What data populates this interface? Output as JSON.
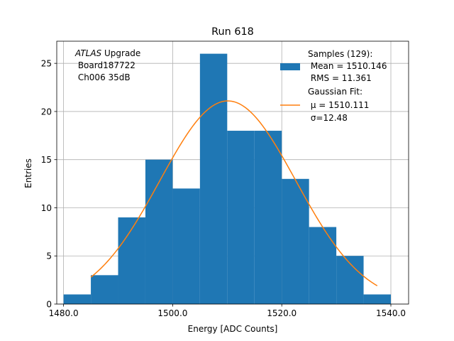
{
  "chart_data": {
    "type": "bar",
    "title": "Run 618",
    "xlabel": "Energy [ADC Counts]",
    "ylabel": "Entries",
    "xlim": [
      1478.75,
      1543.25
    ],
    "ylim": [
      0,
      27.3
    ],
    "grid": true,
    "x_ticks": [
      1480.0,
      1500.0,
      1520.0,
      1540.0
    ],
    "x_tick_labels": [
      "1480.0",
      "1500.0",
      "1520.0",
      "1540.0"
    ],
    "y_ticks": [
      0,
      5,
      10,
      15,
      20,
      25
    ],
    "y_tick_labels": [
      "0",
      "5",
      "10",
      "15",
      "20",
      "25"
    ],
    "bin_edges": [
      1480,
      1485,
      1490,
      1495,
      1500,
      1505,
      1510,
      1515,
      1520,
      1525,
      1530,
      1535,
      1540
    ],
    "values": [
      1,
      3,
      9,
      15,
      12,
      26,
      18,
      18,
      13,
      8,
      5,
      1
    ],
    "bar_color": "#1f77b4",
    "fit": {
      "type": "gaussian",
      "amplitude": 21.1,
      "mu": 1510.111,
      "sigma": 12.48,
      "x_range": [
        1485,
        1537.5
      ],
      "color": "#ff7f0e"
    },
    "annotation": {
      "italic": "ATLAS",
      "rest": " Upgrade",
      "line2": " Board187722",
      "line3": " Ch006 35dB"
    },
    "legend": {
      "placement": "top-right",
      "entries": [
        {
          "kind": "patch",
          "color": "#1f77b4",
          "lines": [
            "Samples (129):",
            " Mean = 1510.146",
            " RMS = 11.361"
          ]
        },
        {
          "kind": "line",
          "color": "#ff7f0e",
          "lines": [
            "Gaussian Fit:",
            " μ = 1510.111",
            " σ=12.48"
          ]
        }
      ]
    }
  }
}
